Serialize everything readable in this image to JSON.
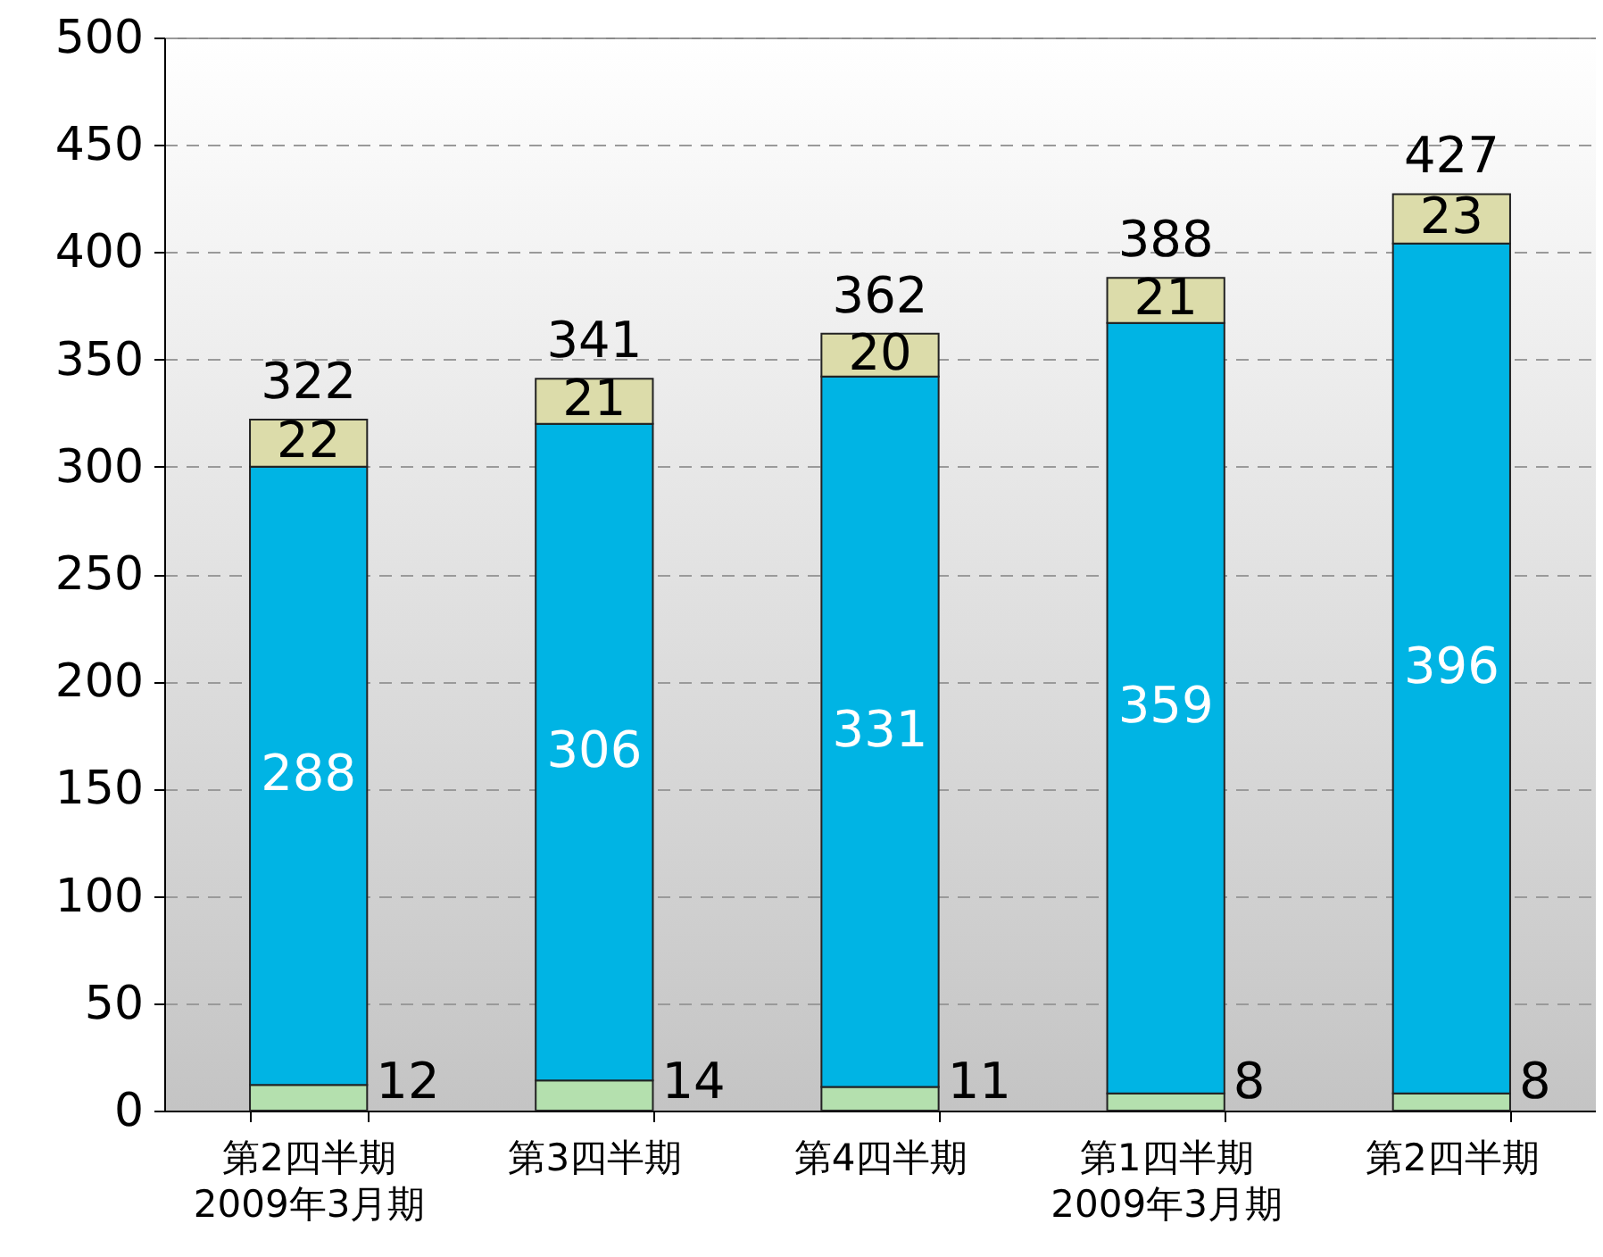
{
  "chart_data": {
    "type": "bar",
    "stacked": true,
    "categories": [
      "第2四半期\n2009年3月期",
      "第3四半期",
      "第4四半期",
      "第1四半期\n2009年3月期",
      "第2四半期"
    ],
    "series": [
      {
        "color": "#b4e0ae",
        "values": [
          12,
          14,
          11,
          8,
          8
        ]
      },
      {
        "color": "#00b4e4",
        "values": [
          288,
          306,
          331,
          359,
          396
        ]
      },
      {
        "color": "#dcdcaa",
        "values": [
          22,
          21,
          20,
          21,
          23
        ]
      }
    ],
    "data_labels": true,
    "totals": [
      "322",
      "341",
      "362",
      "388",
      "427"
    ],
    "ylim": [
      0,
      500
    ],
    "yticks": [
      0,
      50,
      100,
      150,
      200,
      250,
      300,
      350,
      400,
      450,
      500
    ],
    "grid": "y"
  }
}
